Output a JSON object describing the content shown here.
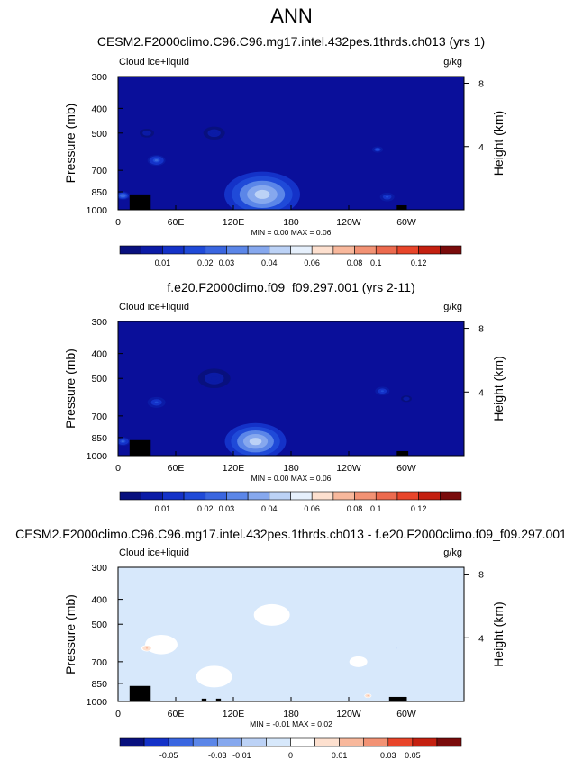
{
  "page_title": "ANN",
  "colors": {
    "deep_blue": "#0a0f9a",
    "blue": "#1f3fd0",
    "sky": "#6f97ec",
    "pale": "#cfe3fa",
    "white": "#ffffff",
    "peach": "#fbd3bd",
    "salmon": "#f29274",
    "red_orange": "#e8452a",
    "dark_red": "#7a0b0b"
  },
  "chart_data": [
    {
      "type": "heatmap",
      "title": "CESM2.F2000climo.C96.C96.mg17.intel.432pes.1thrds.ch013 (yrs 1)",
      "variable": "Cloud ice+liquid",
      "units": "g/kg",
      "ylabel": "Pressure (mb)",
      "ylabel_right": "Height (km)",
      "y_ticks": [
        "300",
        "400",
        "500",
        "700",
        "850",
        "1000"
      ],
      "y_ticks_right": [
        "8",
        "4"
      ],
      "x_ticks": [
        "0",
        "60E",
        "120E",
        "180",
        "120W",
        "60W"
      ],
      "stats": "MIN =  0.00  MAX =  0.06",
      "colorbar_labels": [
        "0.01",
        "0.02",
        "0.03",
        "0.04",
        "0.06",
        "0.08",
        "0.1",
        "0.12"
      ],
      "colorbar_colors": [
        "#08107e",
        "#0b1ba6",
        "#1432c8",
        "#1f4ad8",
        "#3a66e0",
        "#5b86e8",
        "#86a8ee",
        "#bcd2f6",
        "#e6f0fc",
        "#fde0cf",
        "#f8b89c",
        "#f29274",
        "#ec6a4e",
        "#e8452a",
        "#c42010",
        "#7a0b0b"
      ],
      "background": "#0a0f9a",
      "features": [
        {
          "lon": 150,
          "pres": 870,
          "size": 42,
          "level": 0.06
        },
        {
          "lon": 40,
          "pres": 640,
          "size": 10,
          "level": 0.035
        },
        {
          "lon": 5,
          "pres": 880,
          "size": 8,
          "level": 0.04
        },
        {
          "lon": 270,
          "pres": 580,
          "size": 6,
          "level": 0.03
        },
        {
          "lon": 100,
          "pres": 500,
          "size": 12,
          "level": 0.015
        },
        {
          "lon": 30,
          "pres": 500,
          "size": 8,
          "level": 0.015
        },
        {
          "lon": 280,
          "pres": 890,
          "size": 8,
          "level": 0.025
        }
      ],
      "land_masks": [
        {
          "lon": 12,
          "width": 22,
          "pres_top": 870
        },
        {
          "lon": 290,
          "width": 10,
          "pres_top": 960
        }
      ]
    },
    {
      "type": "heatmap",
      "title": "f.e20.F2000climo.f09_f09.297.001 (yrs 2-11)",
      "variable": "Cloud ice+liquid",
      "units": "g/kg",
      "ylabel": "Pressure (mb)",
      "ylabel_right": "Height (km)",
      "y_ticks": [
        "300",
        "400",
        "500",
        "700",
        "850",
        "1000"
      ],
      "y_ticks_right": [
        "8",
        "4"
      ],
      "x_ticks": [
        "0",
        "60E",
        "120E",
        "180",
        "120W",
        "60W"
      ],
      "stats": "MIN =  0.00  MAX =  0.06",
      "colorbar_labels": [
        "0.01",
        "0.02",
        "0.03",
        "0.04",
        "0.06",
        "0.08",
        "0.1",
        "0.12"
      ],
      "colorbar_colors": [
        "#08107e",
        "#0b1ba6",
        "#1432c8",
        "#1f4ad8",
        "#3a66e0",
        "#5b86e8",
        "#86a8ee",
        "#bcd2f6",
        "#e6f0fc",
        "#fde0cf",
        "#f8b89c",
        "#f29274",
        "#ec6a4e",
        "#e8452a",
        "#c42010",
        "#7a0b0b"
      ],
      "background": "#0a0f9a",
      "features": [
        {
          "lon": 143,
          "pres": 880,
          "size": 34,
          "level": 0.06
        },
        {
          "lon": 40,
          "pres": 620,
          "size": 10,
          "level": 0.025
        },
        {
          "lon": 5,
          "pres": 880,
          "size": 8,
          "level": 0.035
        },
        {
          "lon": 275,
          "pres": 560,
          "size": 8,
          "level": 0.025
        },
        {
          "lon": 100,
          "pres": 500,
          "size": 18,
          "level": 0.015
        },
        {
          "lon": 300,
          "pres": 600,
          "size": 6,
          "level": 0.015
        }
      ],
      "land_masks": [
        {
          "lon": 12,
          "width": 22,
          "pres_top": 870
        },
        {
          "lon": 290,
          "width": 12,
          "pres_top": 960
        }
      ]
    },
    {
      "type": "heatmap",
      "title": "CESM2.F2000climo.C96.C96.mg17.intel.432pes.1thrds.ch013 - f.e20.F2000climo.f09_f09.297.001",
      "variable": "Cloud ice+liquid",
      "units": "g/kg",
      "ylabel": "Pressure (mb)",
      "ylabel_right": "Height (km)",
      "y_ticks": [
        "300",
        "400",
        "500",
        "700",
        "850",
        "1000"
      ],
      "y_ticks_right": [
        "8",
        "4"
      ],
      "x_ticks": [
        "0",
        "60E",
        "120E",
        "180",
        "120W",
        "60W"
      ],
      "stats": "MIN = -0.01  MAX =  0.02",
      "colorbar_labels": [
        "-0.05",
        "-0.03",
        "-0.01",
        "0",
        "0.01",
        "0.03",
        "0.05"
      ],
      "colorbar_colors": [
        "#08107e",
        "#1432c8",
        "#3a66e0",
        "#5b86e8",
        "#86a8ee",
        "#bcd2f6",
        "#d7e8fb",
        "#ffffff",
        "#fde0cf",
        "#f8b89c",
        "#f29274",
        "#e8452a",
        "#c42010",
        "#7a0b0b"
      ],
      "background": "#d7e8fb",
      "features": [
        {
          "lon": 45,
          "pres": 600,
          "size": 18,
          "level": 0.005
        },
        {
          "lon": 100,
          "pres": 800,
          "size": 20,
          "level": 0.003
        },
        {
          "lon": 250,
          "pres": 700,
          "size": 10,
          "level": 0.003
        },
        {
          "lon": 30,
          "pres": 620,
          "size": 6,
          "level": 0.02
        },
        {
          "lon": 260,
          "pres": 950,
          "size": 4,
          "level": 0.02
        },
        {
          "lon": 290,
          "pres": 620,
          "size": 3,
          "level": -0.01
        },
        {
          "lon": 160,
          "pres": 460,
          "size": 20,
          "level": 0.003
        }
      ],
      "land_masks": [
        {
          "lon": 12,
          "width": 22,
          "pres_top": 870
        },
        {
          "lon": 87,
          "width": 5,
          "pres_top": 975
        },
        {
          "lon": 102,
          "width": 5,
          "pres_top": 975
        },
        {
          "lon": 282,
          "width": 18,
          "pres_top": 960
        }
      ]
    }
  ]
}
